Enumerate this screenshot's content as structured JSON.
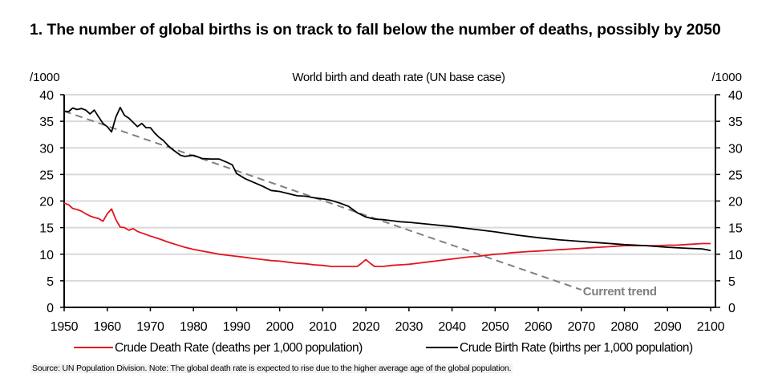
{
  "header": {
    "title": "1. The number of global births is on track to fall below the number of deaths, possibly by 2050"
  },
  "footer": {
    "source": "Source: UN Population Division. Note: The global death rate is expected to rise due to the higher average age of the global population."
  },
  "chart_data": {
    "type": "line",
    "title": "World birth and death rate (UN base case)",
    "ylabel_left": "/1000",
    "ylabel_right": "/1000",
    "xlabel": "",
    "xlim": [
      1950,
      2100
    ],
    "ylim": [
      0,
      40
    ],
    "xticks": [
      1950,
      1960,
      1970,
      1980,
      1990,
      2000,
      2010,
      2020,
      2030,
      2040,
      2050,
      2060,
      2070,
      2080,
      2090,
      2100
    ],
    "yticks": [
      0,
      5,
      10,
      15,
      20,
      25,
      30,
      35,
      40
    ],
    "grid": true,
    "legend_position": "bottom",
    "annotation": {
      "text": "Current trend",
      "x": 2070,
      "y": 3.3
    },
    "series": [
      {
        "name": "Crude Death Rate (deaths per 1,000 population)",
        "color": "#e3141c",
        "style": "solid",
        "x": [
          1950,
          1951,
          1952,
          1953,
          1954,
          1955,
          1956,
          1957,
          1958,
          1959,
          1960,
          1961,
          1962,
          1963,
          1964,
          1965,
          1966,
          1967,
          1968,
          1969,
          1970,
          1972,
          1974,
          1976,
          1978,
          1980,
          1982,
          1984,
          1986,
          1988,
          1990,
          1992,
          1994,
          1996,
          1998,
          2000,
          2002,
          2004,
          2006,
          2008,
          2010,
          2012,
          2014,
          2016,
          2018,
          2019,
          2020,
          2021,
          2022,
          2023,
          2024,
          2026,
          2028,
          2030,
          2032,
          2034,
          2036,
          2038,
          2040,
          2042,
          2044,
          2046,
          2048,
          2050,
          2052,
          2054,
          2056,
          2058,
          2060,
          2062,
          2064,
          2066,
          2068,
          2070,
          2072,
          2074,
          2076,
          2078,
          2080,
          2082,
          2084,
          2086,
          2088,
          2090,
          2092,
          2094,
          2096,
          2098,
          2100
        ],
        "y": [
          19.6,
          19.3,
          18.6,
          18.4,
          18.1,
          17.6,
          17.2,
          16.9,
          16.7,
          16.2,
          17.6,
          18.5,
          16.5,
          15.1,
          15.0,
          14.5,
          14.8,
          14.3,
          14.0,
          13.7,
          13.4,
          12.9,
          12.3,
          11.8,
          11.3,
          10.9,
          10.6,
          10.3,
          10.0,
          9.8,
          9.6,
          9.4,
          9.2,
          9.0,
          8.8,
          8.7,
          8.5,
          8.3,
          8.2,
          8.0,
          7.9,
          7.7,
          7.7,
          7.7,
          7.7,
          8.3,
          9.0,
          8.3,
          7.7,
          7.7,
          7.7,
          7.9,
          8.0,
          8.1,
          8.3,
          8.5,
          8.7,
          8.9,
          9.1,
          9.3,
          9.5,
          9.6,
          9.8,
          10.0,
          10.1,
          10.3,
          10.4,
          10.5,
          10.6,
          10.7,
          10.8,
          10.9,
          11.0,
          11.1,
          11.2,
          11.3,
          11.4,
          11.5,
          11.6,
          11.6,
          11.6,
          11.6,
          11.6,
          11.7,
          11.7,
          11.8,
          11.9,
          12.0,
          12.0
        ]
      },
      {
        "name": "Crude Birth Rate (births per 1,000 population)",
        "color": "#000000",
        "style": "solid",
        "x": [
          1950,
          1951,
          1952,
          1953,
          1954,
          1955,
          1956,
          1957,
          1958,
          1959,
          1960,
          1961,
          1962,
          1963,
          1964,
          1965,
          1966,
          1967,
          1968,
          1969,
          1970,
          1971,
          1972,
          1973,
          1974,
          1975,
          1976,
          1977,
          1978,
          1979,
          1980,
          1982,
          1984,
          1986,
          1988,
          1989,
          1990,
          1992,
          1994,
          1996,
          1998,
          2000,
          2002,
          2004,
          2006,
          2008,
          2010,
          2012,
          2014,
          2016,
          2018,
          2020,
          2022,
          2024,
          2026,
          2028,
          2030,
          2035,
          2040,
          2045,
          2050,
          2055,
          2060,
          2065,
          2070,
          2075,
          2080,
          2085,
          2090,
          2095,
          2098,
          2100
        ],
        "y": [
          36.9,
          36.8,
          37.5,
          37.2,
          37.4,
          37.1,
          36.4,
          37.1,
          35.8,
          34.6,
          34.0,
          33.0,
          35.8,
          37.6,
          36.1,
          35.6,
          34.8,
          34.0,
          34.6,
          33.8,
          33.8,
          32.8,
          32.0,
          31.4,
          30.5,
          29.8,
          29.2,
          28.6,
          28.4,
          28.5,
          28.6,
          28.0,
          27.9,
          27.9,
          27.2,
          26.8,
          25.2,
          24.2,
          23.5,
          22.8,
          22.0,
          21.8,
          21.4,
          21.0,
          20.9,
          20.6,
          20.4,
          20.1,
          19.6,
          19.0,
          17.8,
          17.0,
          16.6,
          16.5,
          16.3,
          16.1,
          16.0,
          15.6,
          15.2,
          14.7,
          14.2,
          13.6,
          13.1,
          12.7,
          12.4,
          12.1,
          11.8,
          11.6,
          11.3,
          11.1,
          11.0,
          10.7
        ]
      },
      {
        "name": "Current trend",
        "color": "#808080",
        "style": "dashed",
        "x": [
          1950,
          2070
        ],
        "y": [
          36.9,
          3.3
        ]
      }
    ]
  }
}
